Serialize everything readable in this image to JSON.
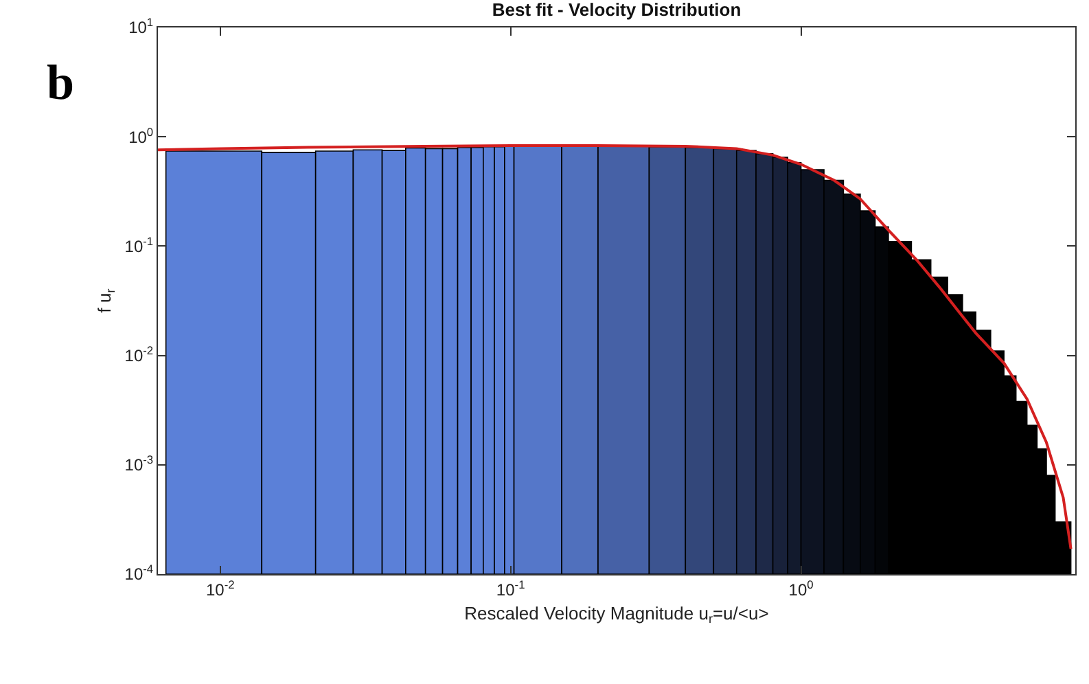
{
  "chart_data": {
    "type": "histogram",
    "title": "Best fit - Velocity Distribution",
    "xlabel": "Rescaled Velocity Magnitude u$_{r}$=u/<u>",
    "ylabel": "f u$_{r}$",
    "annotations": [
      "b"
    ],
    "log": "xy",
    "grid": false,
    "xlim": [
      0.0061,
      8.8
    ],
    "xticks": [
      {
        "value": 0.01,
        "label": "10$^{-2}$"
      },
      {
        "value": 0.1,
        "label": "10$^{-1}$"
      },
      {
        "value": 1,
        "label": "10$^{0}$"
      }
    ],
    "ylim": [
      0.0001,
      10
    ],
    "yticks": [
      {
        "value": 0.0001,
        "label": "10$^{-4}$"
      },
      {
        "value": 0.001,
        "label": "10$^{-3}$"
      },
      {
        "value": 0.01,
        "label": "10$^{-2}$"
      },
      {
        "value": 0.1,
        "label": "10$^{-1}$"
      },
      {
        "value": 1,
        "label": "10$^{0}$"
      },
      {
        "value": 10,
        "label": "10$^{1}$"
      }
    ],
    "bins": [
      0.0065,
      0.0139,
      0.0213,
      0.0287,
      0.0361,
      0.0435,
      0.0509,
      0.0583,
      0.0657,
      0.0731,
      0.0805,
      0.0879,
      0.0953,
      0.1027,
      0.15,
      0.2,
      0.3,
      0.4,
      0.5,
      0.6,
      0.7,
      0.8,
      0.9,
      1.0,
      1.2,
      1.4,
      1.6,
      1.8,
      2.0,
      2.4,
      2.8,
      3.2,
      3.6,
      4.0,
      4.5,
      5.0,
      5.5,
      6.0,
      6.5,
      7.0,
      7.5,
      8.5
    ],
    "values": [
      0.74,
      0.72,
      0.74,
      0.76,
      0.75,
      0.79,
      0.78,
      0.78,
      0.8,
      0.8,
      0.81,
      0.81,
      0.82,
      0.82,
      0.82,
      0.82,
      0.81,
      0.8,
      0.78,
      0.75,
      0.7,
      0.65,
      0.58,
      0.5,
      0.4,
      0.3,
      0.21,
      0.15,
      0.11,
      0.075,
      0.052,
      0.036,
      0.025,
      0.017,
      0.011,
      0.0065,
      0.0038,
      0.0023,
      0.0014,
      0.0008,
      0.0003
    ],
    "colors": [
      "#5b80d8",
      "#5b80d8",
      "#5b80d8",
      "#5b80d8",
      "#5b80d8",
      "#5b80d8",
      "#5b80d8",
      "#5b80d8",
      "#5b80d8",
      "#5b80d8",
      "#5b80d8",
      "#5b80d8",
      "#5b80d8",
      "#5577c9",
      "#5070bd",
      "#4661a6",
      "#3c5490",
      "#33477a",
      "#2b3c67",
      "#243257",
      "#1e2948",
      "#18213a",
      "#121a2d",
      "#0d1322",
      "#0a0f1a",
      "#070b13",
      "#05080e",
      "#030508",
      "#000000",
      "#000000",
      "#000000",
      "#000000",
      "#000000",
      "#000000",
      "#000000",
      "#000000",
      "#000000",
      "#000000",
      "#000000",
      "#000000",
      "#000000"
    ],
    "series": [
      {
        "type": "line",
        "color": "#d42020",
        "x": [
          0.0061,
          0.01,
          0.02,
          0.05,
          0.1,
          0.2,
          0.4,
          0.6,
          0.8,
          1,
          1.3,
          1.6,
          2,
          2.5,
          3,
          3.5,
          4,
          5,
          6,
          7,
          8,
          8.5
        ],
        "values": [
          0.76,
          0.78,
          0.8,
          0.82,
          0.83,
          0.83,
          0.82,
          0.78,
          0.68,
          0.56,
          0.4,
          0.27,
          0.14,
          0.075,
          0.042,
          0.025,
          0.016,
          0.0085,
          0.004,
          0.0016,
          0.0005,
          0.00017
        ]
      }
    ]
  }
}
